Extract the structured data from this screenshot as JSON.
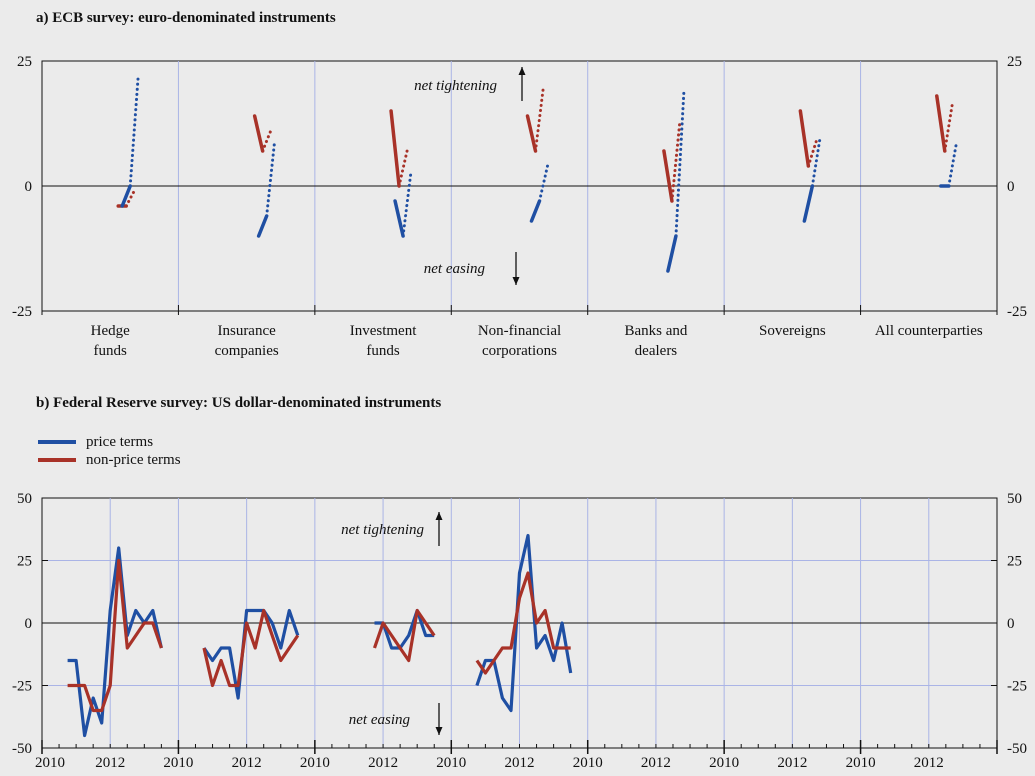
{
  "colors": {
    "price": "#1f4fa3",
    "nonprice": "#a83228",
    "grid": "#aab4e6",
    "background": "#ebebeb"
  },
  "panel_a": {
    "title": "a) ECB survey: euro-denominated instruments",
    "annotation_up": "net tightening",
    "annotation_down": "net easing"
  },
  "panel_b": {
    "title": "b) Federal Reserve survey: US dollar-denominated instruments",
    "annotation_up": "net tightening",
    "annotation_down": "net easing"
  },
  "legend": [
    {
      "label": "price terms",
      "color": "#1f4fa3"
    },
    {
      "label": "non-price terms",
      "color": "#a83228"
    }
  ],
  "chart_data": [
    {
      "type": "line",
      "title": "a) ECB survey: euro-denominated instruments",
      "ylim": [
        -25,
        25
      ],
      "yticks": [
        "-25",
        "0",
        "25"
      ],
      "grid": true,
      "categories": [
        [
          "Hedge",
          "funds"
        ],
        [
          "Insurance",
          "companies"
        ],
        [
          "Investment",
          "funds"
        ],
        [
          "Non-financial",
          "corporations"
        ],
        [
          "Banks and",
          "dealers"
        ],
        [
          "Sovereigns"
        ],
        [
          "All counterparties"
        ]
      ],
      "note": "Per category: solid segments = past quarters, dotted segment = expected change",
      "groups": [
        {
          "price": {
            "solid": [
              -4,
              0
            ],
            "dotted": [
              0,
              22
            ]
          },
          "nonprice": {
            "solid": [
              -4,
              -4
            ],
            "dotted": [
              -4,
              -1
            ]
          }
        },
        {
          "price": {
            "solid": [
              -10,
              -6
            ],
            "dotted": [
              -6,
              9
            ]
          },
          "nonprice": {
            "solid": [
              14,
              7
            ],
            "dotted": [
              7,
              11
            ]
          }
        },
        {
          "price": {
            "solid": [
              -3,
              -10
            ],
            "dotted": [
              -10,
              3
            ]
          },
          "nonprice": {
            "solid": [
              15,
              0
            ],
            "dotted": [
              0,
              7
            ]
          }
        },
        {
          "price": {
            "solid": [
              -7,
              -3
            ],
            "dotted": [
              -3,
              4
            ]
          },
          "nonprice": {
            "solid": [
              14,
              7
            ],
            "dotted": [
              7,
              20
            ]
          }
        },
        {
          "price": {
            "solid": [
              -17,
              -10
            ],
            "dotted": [
              -10,
              19
            ]
          },
          "nonprice": {
            "solid": [
              7,
              -3
            ],
            "dotted": [
              -3,
              13
            ]
          }
        },
        {
          "price": {
            "solid": [
              -7,
              0
            ],
            "dotted": [
              0,
              10
            ]
          },
          "nonprice": {
            "solid": [
              15,
              4
            ],
            "dotted": [
              4,
              9
            ]
          }
        },
        {
          "price": {
            "solid": [
              0,
              0
            ],
            "dotted": [
              0,
              9
            ]
          },
          "nonprice": {
            "solid": [
              18,
              7
            ],
            "dotted": [
              7,
              17
            ]
          }
        }
      ]
    },
    {
      "type": "line",
      "title": "b) Federal Reserve survey: US dollar-denominated instruments",
      "ylim": [
        -50,
        50
      ],
      "yticks": [
        "-50",
        "-25",
        "0",
        "25",
        "50"
      ],
      "xtick_labels": [
        "2010",
        "2012",
        "2010",
        "2012",
        "2010",
        "2012",
        "2010",
        "2012",
        "2010",
        "2012",
        "2010",
        "2012",
        "2010",
        "2012"
      ],
      "grid": true,
      "panels": [
        {
          "x": [
            2010.75,
            2011.0,
            2011.25,
            2011.5,
            2011.75,
            2012.0,
            2012.25,
            2012.5,
            2012.75,
            2013.0,
            2013.25,
            2013.5
          ],
          "series": [
            {
              "name": "price terms",
              "values": [
                -15,
                -15,
                -45,
                -30,
                -40,
                5,
                30,
                -5,
                5,
                0,
                5,
                -10
              ]
            },
            {
              "name": "non-price terms",
              "values": [
                -25,
                -25,
                -25,
                -35,
                -35,
                -25,
                25,
                -10,
                -5,
                0,
                0,
                -10
              ]
            }
          ]
        },
        {
          "x": [
            2010.75,
            2011.0,
            2011.25,
            2011.5,
            2011.75,
            2012.0,
            2012.25,
            2012.5,
            2012.75,
            2013.0,
            2013.25,
            2013.5
          ],
          "series": [
            {
              "name": "price terms",
              "values": [
                -10,
                -15,
                -10,
                -10,
                -30,
                5,
                5,
                5,
                0,
                -10,
                5,
                -5
              ]
            },
            {
              "name": "non-price terms",
              "values": [
                -10,
                -25,
                -15,
                -25,
                -25,
                0,
                -10,
                5,
                -5,
                -15,
                -10,
                -5
              ]
            }
          ]
        },
        {
          "x": [
            2011.75,
            2012.0,
            2012.25,
            2012.5,
            2012.75,
            2013.0,
            2013.25,
            2013.5
          ],
          "series": [
            {
              "name": "price terms",
              "values": [
                0,
                0,
                -10,
                -10,
                -5,
                5,
                -5,
                -5
              ]
            },
            {
              "name": "non-price terms",
              "values": [
                -10,
                0,
                -5,
                -10,
                -15,
                5,
                0,
                -5
              ]
            }
          ]
        },
        {
          "x": [
            2010.75,
            2011.0,
            2011.25,
            2011.5,
            2011.75,
            2012.0,
            2012.25,
            2012.5,
            2012.75,
            2013.0,
            2013.25,
            2013.5
          ],
          "series": [
            {
              "name": "price terms",
              "values": [
                -25,
                -15,
                -15,
                -30,
                -35,
                20,
                35,
                -10,
                -5,
                -15,
                0,
                -20
              ]
            },
            {
              "name": "non-price terms",
              "values": [
                -15,
                -20,
                -15,
                -10,
                -10,
                10,
                20,
                0,
                5,
                -10,
                -10,
                -10
              ]
            }
          ]
        },
        {
          "x": [],
          "series": []
        },
        {
          "x": [],
          "series": []
        },
        {
          "x": [],
          "series": []
        }
      ]
    }
  ]
}
